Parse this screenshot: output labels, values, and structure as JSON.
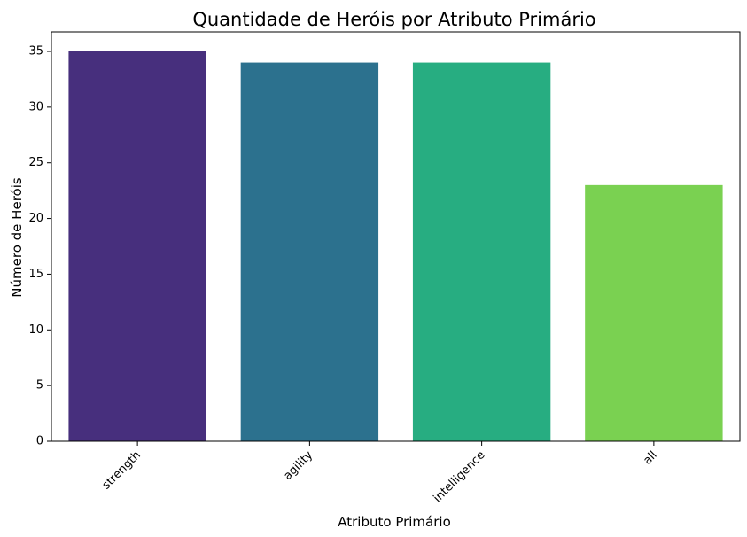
{
  "chart_data": {
    "type": "bar",
    "title": "Quantidade de Heróis por Atributo Primário",
    "xlabel": "Atributo Primário",
    "ylabel": "Número de Heróis",
    "categories": [
      "strength",
      "agility",
      "intelligence",
      "all"
    ],
    "values": [
      35,
      34,
      34,
      23
    ],
    "colors": [
      "#472f7d",
      "#2c718e",
      "#27ad81",
      "#7ad151"
    ],
    "ylim": [
      0,
      36.75
    ],
    "yticks": [
      0,
      5,
      10,
      15,
      20,
      25,
      30,
      35
    ],
    "grid": false,
    "legend": "none"
  }
}
